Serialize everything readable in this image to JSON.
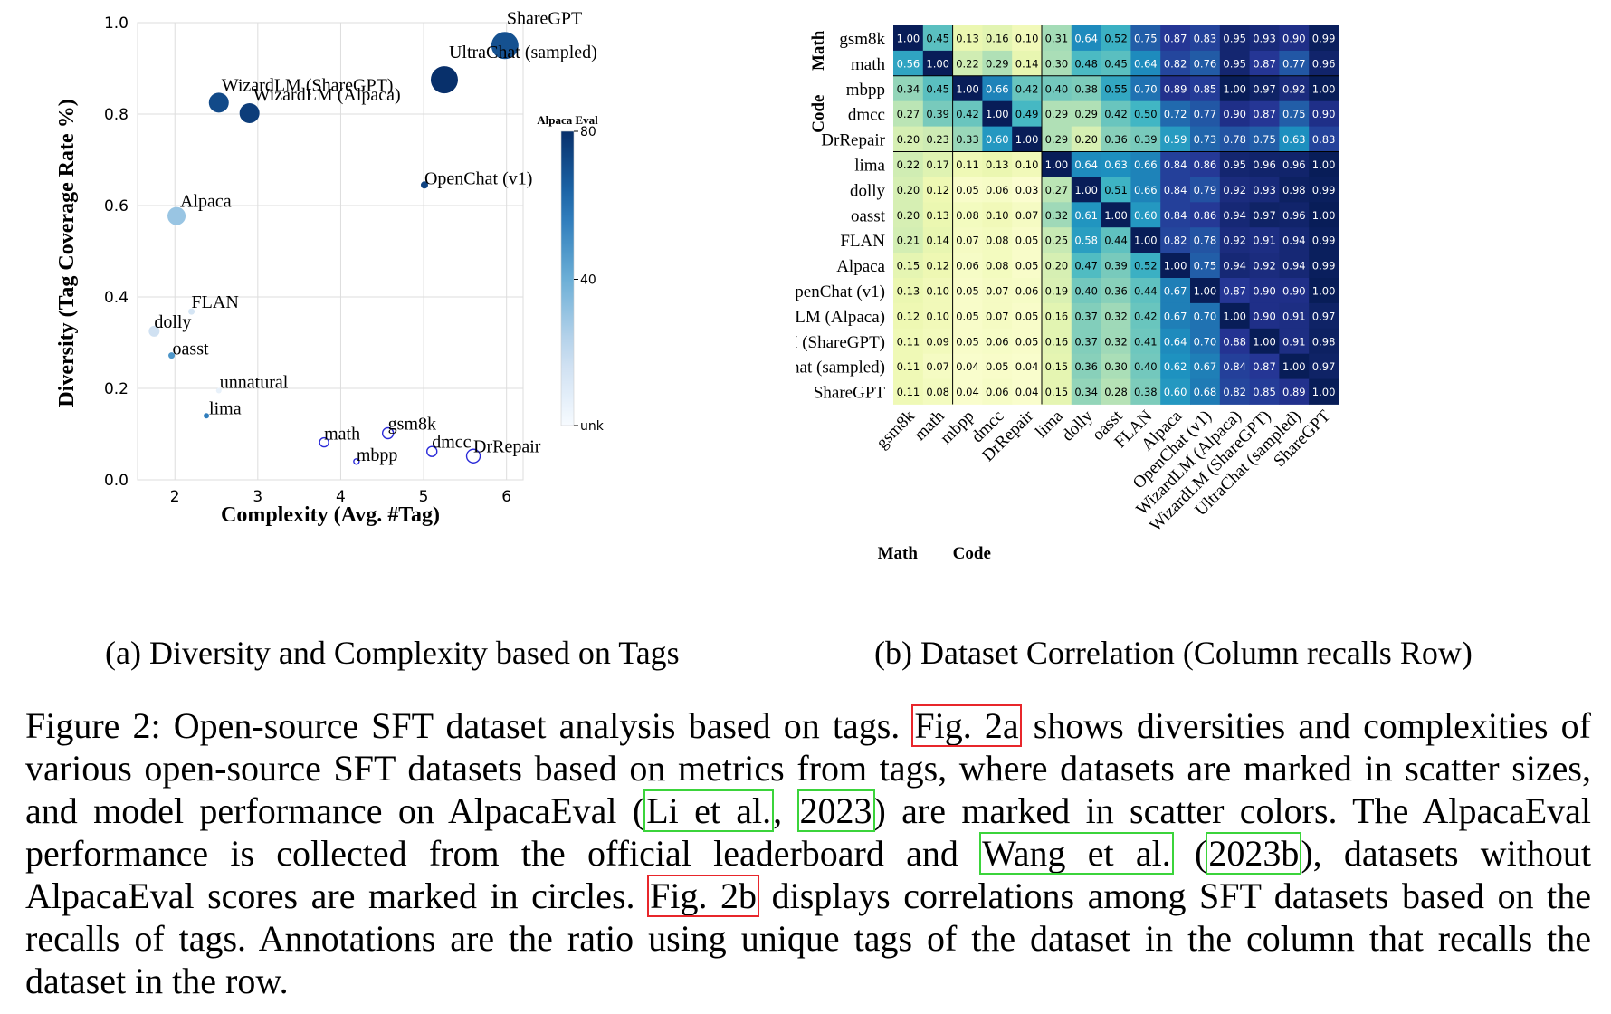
{
  "chart_data": [
    {
      "type": "scatter",
      "xlabel": "Complexity (Avg. #Tag)",
      "ylabel": "Diversity (Tag Coverage Rate %)",
      "xlim": [
        1.55,
        6.2
      ],
      "ylim": [
        0.0,
        1.0
      ],
      "xticks": [
        2,
        3,
        4,
        5,
        6
      ],
      "yticks": [
        0.0,
        0.2,
        0.4,
        0.6,
        0.8,
        1.0
      ],
      "grid": true,
      "colorbar": {
        "title": "Alpaca Eval",
        "ticks": [
          "80",
          "40",
          "unk"
        ],
        "range": [
          0,
          80
        ]
      },
      "points": [
        {
          "name": "ShareGPT",
          "x": 5.98,
          "y": 0.95,
          "size": 30,
          "score": 70
        },
        {
          "name": "UltraChat (sampled)",
          "x": 5.25,
          "y": 0.875,
          "size": 30,
          "score": 80
        },
        {
          "name": "WizardLM (ShareGPT)",
          "x": 2.53,
          "y": 0.825,
          "size": 22,
          "score": 72
        },
        {
          "name": "WizardLM (Alpaca)",
          "x": 2.9,
          "y": 0.802,
          "size": 22,
          "score": 76
        },
        {
          "name": "OpenChat (v1)",
          "x": 5.01,
          "y": 0.645,
          "size": 8,
          "score": 74
        },
        {
          "name": "Alpaca",
          "x": 2.02,
          "y": 0.577,
          "size": 20,
          "score": 30
        },
        {
          "name": "FLAN",
          "x": 2.2,
          "y": 0.368,
          "size": 7,
          "score": 14
        },
        {
          "name": "dolly",
          "x": 1.75,
          "y": 0.325,
          "size": 12,
          "score": 16
        },
        {
          "name": "oasst",
          "x": 1.96,
          "y": 0.272,
          "size": 7,
          "score": 48
        },
        {
          "name": "unnatural",
          "x": 2.53,
          "y": 0.195,
          "size": 6,
          "score": 6
        },
        {
          "name": "lima",
          "x": 2.38,
          "y": 0.14,
          "size": 6,
          "score": 56
        },
        {
          "name": "math",
          "x": 3.8,
          "y": 0.082,
          "size": 10,
          "score": null
        },
        {
          "name": "mbpp",
          "x": 4.19,
          "y": 0.04,
          "size": 6,
          "score": null
        },
        {
          "name": "gsm8k",
          "x": 4.57,
          "y": 0.102,
          "size": 12,
          "score": null
        },
        {
          "name": "dmcc",
          "x": 5.1,
          "y": 0.062,
          "size": 11,
          "score": null
        },
        {
          "name": "DrRepair",
          "x": 5.6,
          "y": 0.052,
          "size": 15,
          "score": null
        }
      ]
    },
    {
      "type": "heatmap",
      "labels": [
        "gsm8k",
        "math",
        "mbpp",
        "dmcc",
        "DrRepair",
        "lima",
        "dolly",
        "oasst",
        "FLAN",
        "Alpaca",
        "OpenChat (v1)",
        "WizardLM (Alpaca)",
        "WizardLM (ShareGPT)",
        "UltraChat (sampled)",
        "ShareGPT"
      ],
      "groups": [
        {
          "name": "Math",
          "start": 0,
          "end": 1
        },
        {
          "name": "Code",
          "start": 2,
          "end": 4
        }
      ],
      "values": [
        [
          "1.00",
          "0.45",
          "0.13",
          "0.16",
          "0.10",
          "0.31",
          "0.64",
          "0.52",
          "0.75",
          "0.87",
          "0.83",
          "0.95",
          "0.93",
          "0.90",
          "0.99"
        ],
        [
          "0.56",
          "1.00",
          "0.22",
          "0.29",
          "0.14",
          "0.30",
          "0.48",
          "0.45",
          "0.64",
          "0.82",
          "0.76",
          "0.95",
          "0.87",
          "0.77",
          "0.96"
        ],
        [
          "0.34",
          "0.45",
          "1.00",
          "0.66",
          "0.42",
          "0.40",
          "0.38",
          "0.55",
          "0.70",
          "0.89",
          "0.85",
          "1.00",
          "0.97",
          "0.92",
          "1.00"
        ],
        [
          "0.27",
          "0.39",
          "0.42",
          "1.00",
          "0.49",
          "0.29",
          "0.29",
          "0.42",
          "0.50",
          "0.72",
          "0.77",
          "0.90",
          "0.87",
          "0.75",
          "0.90"
        ],
        [
          "0.20",
          "0.23",
          "0.33",
          "0.60",
          "1.00",
          "0.29",
          "0.20",
          "0.36",
          "0.39",
          "0.59",
          "0.73",
          "0.78",
          "0.75",
          "0.63",
          "0.83"
        ],
        [
          "0.22",
          "0.17",
          "0.11",
          "0.13",
          "0.10",
          "1.00",
          "0.64",
          "0.63",
          "0.66",
          "0.84",
          "0.86",
          "0.95",
          "0.96",
          "0.96",
          "1.00"
        ],
        [
          "0.20",
          "0.12",
          "0.05",
          "0.06",
          "0.03",
          "0.27",
          "1.00",
          "0.51",
          "0.66",
          "0.84",
          "0.79",
          "0.92",
          "0.93",
          "0.98",
          "0.99"
        ],
        [
          "0.20",
          "0.13",
          "0.08",
          "0.10",
          "0.07",
          "0.32",
          "0.61",
          "1.00",
          "0.60",
          "0.84",
          "0.86",
          "0.94",
          "0.97",
          "0.96",
          "1.00"
        ],
        [
          "0.21",
          "0.14",
          "0.07",
          "0.08",
          "0.05",
          "0.25",
          "0.58",
          "0.44",
          "1.00",
          "0.82",
          "0.78",
          "0.92",
          "0.91",
          "0.94",
          "0.99"
        ],
        [
          "0.15",
          "0.12",
          "0.06",
          "0.08",
          "0.05",
          "0.20",
          "0.47",
          "0.39",
          "0.52",
          "1.00",
          "0.75",
          "0.94",
          "0.92",
          "0.94",
          "0.99"
        ],
        [
          "0.13",
          "0.10",
          "0.05",
          "0.07",
          "0.06",
          "0.19",
          "0.40",
          "0.36",
          "0.44",
          "0.67",
          "1.00",
          "0.87",
          "0.90",
          "0.90",
          "1.00"
        ],
        [
          "0.12",
          "0.10",
          "0.05",
          "0.07",
          "0.05",
          "0.16",
          "0.37",
          "0.32",
          "0.42",
          "0.67",
          "0.70",
          "1.00",
          "0.90",
          "0.91",
          "0.97"
        ],
        [
          "0.11",
          "0.09",
          "0.05",
          "0.06",
          "0.05",
          "0.16",
          "0.37",
          "0.32",
          "0.41",
          "0.64",
          "0.70",
          "0.88",
          "1.00",
          "0.91",
          "0.98"
        ],
        [
          "0.11",
          "0.07",
          "0.04",
          "0.05",
          "0.04",
          "0.15",
          "0.36",
          "0.30",
          "0.40",
          "0.62",
          "0.67",
          "0.84",
          "0.87",
          "1.00",
          "0.97"
        ],
        [
          "0.11",
          "0.08",
          "0.04",
          "0.06",
          "0.04",
          "0.15",
          "0.34",
          "0.28",
          "0.38",
          "0.60",
          "0.68",
          "0.82",
          "0.85",
          "0.89",
          "1.00"
        ]
      ]
    }
  ],
  "subcaptions": {
    "a": "(a) Diversity and Complexity based on Tags",
    "b": "(b) Dataset Correlation (Column recalls Row)"
  },
  "caption": {
    "p1": "Figure 2: Open-source SFT dataset analysis based on tags. ",
    "ref_fig2a": "Fig. 2a",
    "p2": " shows diversities and complexities of various open-source SFT datasets based on metrics from tags, where datasets are marked in scatter sizes, and model performance on AlpacaEval (",
    "ref_li": "Li et al.",
    "sep1": ", ",
    "ref_2023": "2023",
    "p3": ") are marked in scatter colors. The AlpacaEval performance is collected from the official leaderboard and ",
    "ref_wang": "Wang et al.",
    "p4": " (",
    "ref_2023b": "2023b",
    "p5": "), datasets without AlpacaEval scores are marked in circles. ",
    "ref_fig2b": "Fig. 2b",
    "p6": " displays correlations among SFT datasets based on the recalls of tags. Annotations are the ratio using unique tags of the dataset in the column that recalls the dataset in the row."
  },
  "colors": {
    "axis": "#888888",
    "grid": "#dddddd",
    "unk_circle": "#2a2ad8"
  }
}
